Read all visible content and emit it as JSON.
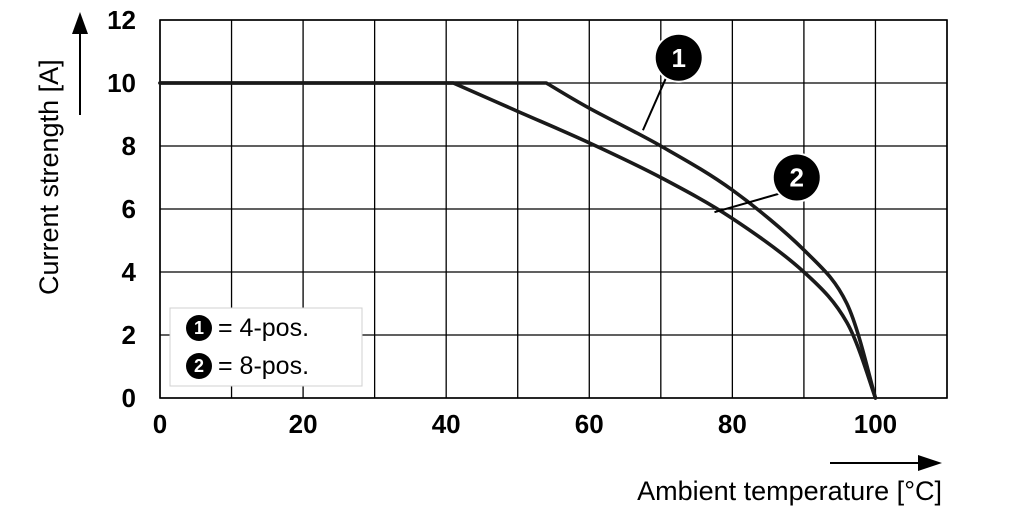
{
  "chart_data": {
    "type": "line",
    "xlabel": "Ambient temperature [°C]",
    "ylabel": "Current strength [A]",
    "xlim": [
      0,
      110
    ],
    "ylim": [
      0,
      12
    ],
    "xticks": [
      0,
      20,
      40,
      60,
      80,
      100
    ],
    "yticks": [
      0,
      2,
      4,
      6,
      8,
      10,
      12
    ],
    "x_tick_labels": [
      "0",
      "20",
      "40",
      "60",
      "80",
      "100"
    ],
    "y_tick_labels": [
      "0",
      "2",
      "4",
      "6",
      "8",
      "10",
      "12"
    ],
    "grid": true,
    "legend_position": "bottom-left",
    "series": [
      {
        "marker": "1",
        "name": "= 4-pos.",
        "x": [
          0,
          54,
          60,
          70,
          80,
          90,
          96,
          100
        ],
        "y": [
          10,
          10,
          9.2,
          8.0,
          6.6,
          4.7,
          3.0,
          0
        ]
      },
      {
        "marker": "2",
        "name": "= 8-pos.",
        "x": [
          0,
          41,
          50,
          60,
          70,
          80,
          90,
          96,
          100
        ],
        "y": [
          10,
          10,
          9.1,
          8.1,
          7.0,
          5.7,
          4.0,
          2.4,
          0
        ]
      }
    ]
  },
  "colors": {
    "line": "#1a1a1a",
    "grid": "#000000",
    "badge": "#000000"
  }
}
